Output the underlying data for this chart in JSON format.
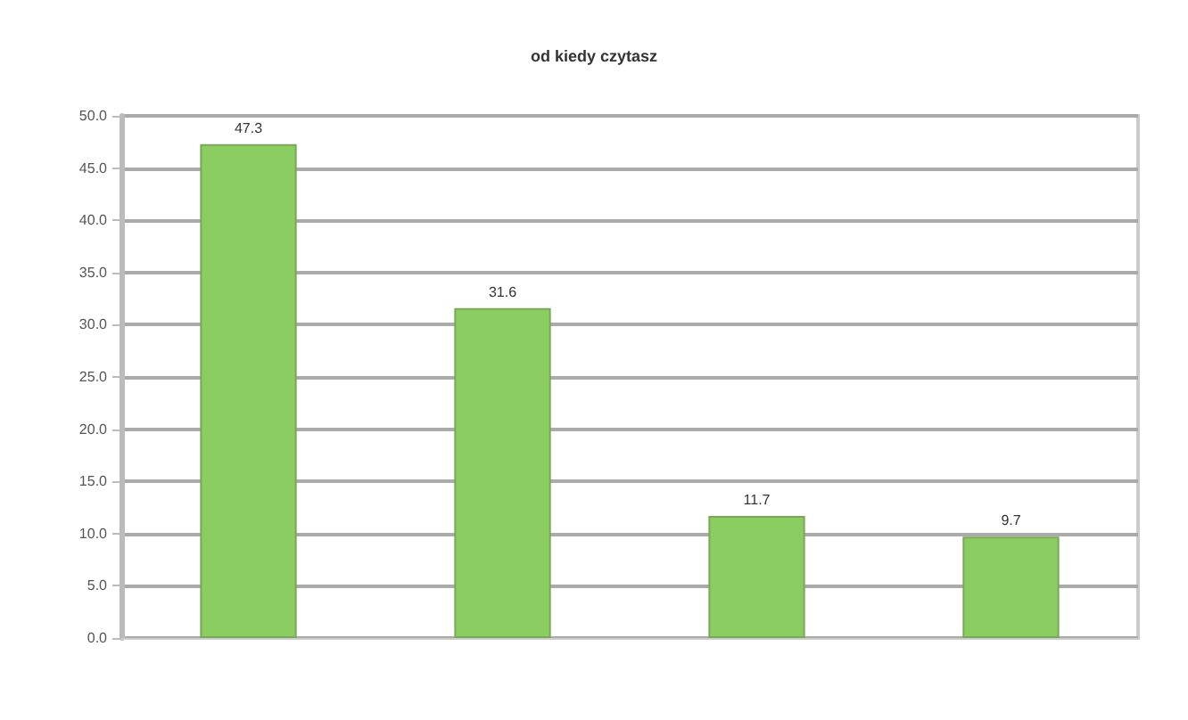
{
  "chart_data": {
    "type": "bar",
    "title": "od kiedy czytasz",
    "categories": [
      null,
      null,
      null,
      null
    ],
    "values": [
      47.3,
      31.6,
      11.7,
      9.7
    ],
    "color": "#8ccd62",
    "ylim": [
      0,
      50
    ],
    "yticks": [
      {
        "value": 0,
        "label": "0.0"
      },
      {
        "value": 5,
        "label": "5.0"
      },
      {
        "value": 10,
        "label": "10.0"
      },
      {
        "value": 15,
        "label": "15.0"
      },
      {
        "value": 20,
        "label": "20.0"
      },
      {
        "value": 25,
        "label": "25.0"
      },
      {
        "value": 30,
        "label": "30.0"
      },
      {
        "value": 35,
        "label": "35.0"
      },
      {
        "value": 40,
        "label": "40.0"
      },
      {
        "value": 45,
        "label": "45.0"
      },
      {
        "value": 50,
        "label": "50.0"
      }
    ],
    "grid": "y",
    "data_labels": true
  }
}
